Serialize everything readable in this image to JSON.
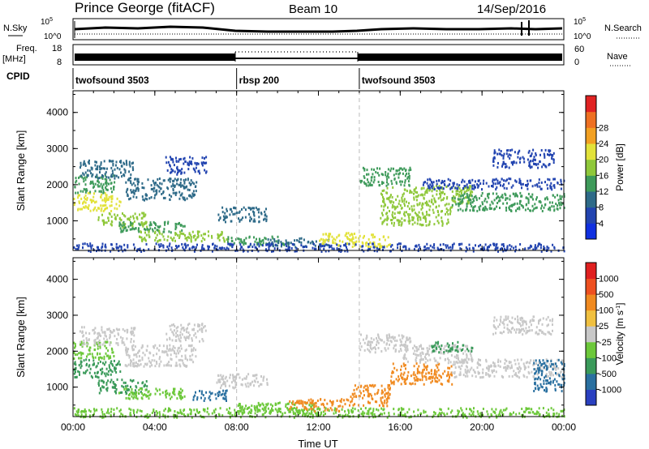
{
  "header": {
    "title": "Prince George (fitACF)",
    "beam": "Beam 10",
    "date": "14/Sep/2016"
  },
  "top_panels": {
    "nsky_label": "N.Sky",
    "nsky_ticks": [
      "10^5",
      "10^0"
    ],
    "nsearch_label": "N.Search",
    "nsearch_ticks": [
      "10^5",
      "10^0"
    ],
    "freq_label_line1": "Freq.",
    "freq_label_line2": "[MHz]",
    "freq_ticks": [
      "18",
      "8"
    ],
    "nave_label": "Nave",
    "nave_ticks": [
      "60",
      "0"
    ],
    "cpid_label": "CPID",
    "cpid_segments": [
      {
        "name": "twofsound 3503",
        "start": 0,
        "end": 8
      },
      {
        "name": "rbsp 200",
        "start": 8,
        "end": 14
      },
      {
        "name": "twofsound 3503",
        "start": 14,
        "end": 24
      }
    ]
  },
  "chart_data": [
    {
      "type": "heatmap",
      "title": "",
      "xlabel": "Time UT",
      "ylabel": "Slant Range [km]",
      "xlim": [
        0,
        24
      ],
      "ylim": [
        180,
        4600
      ],
      "x_ticks": [
        "00:00",
        "04:00",
        "08:00",
        "12:00",
        "16:00",
        "20:00",
        "00:00"
      ],
      "y_ticks": [
        "1000",
        "2000",
        "3000",
        "4000"
      ],
      "y_tick_values": [
        1000,
        2000,
        3000,
        4000
      ],
      "colorbar": {
        "label": "Power [dB]",
        "ticks": [
          "4",
          "8",
          "12",
          "16",
          "20",
          "24",
          "28"
        ],
        "colors": [
          "#1030e0",
          "#2244b0",
          "#2e6a88",
          "#3e9a5a",
          "#8fc83a",
          "#e2e23a",
          "#f2a022",
          "#ee7022",
          "#e02222"
        ]
      },
      "regions": [
        {
          "x": [
            0.0,
            2.3
          ],
          "y": [
            1300,
            1800
          ],
          "v": 24
        },
        {
          "x": [
            0.0,
            2.0
          ],
          "y": [
            1800,
            2300
          ],
          "v": 14
        },
        {
          "x": [
            0.3,
            3.0
          ],
          "y": [
            2200,
            2700
          ],
          "v": 9
        },
        {
          "x": [
            1.2,
            3.6
          ],
          "y": [
            850,
            1250
          ],
          "v": 18
        },
        {
          "x": [
            2.2,
            5.5
          ],
          "y": [
            700,
            1000
          ],
          "v": 16
        },
        {
          "x": [
            3.2,
            7.5
          ],
          "y": [
            450,
            750
          ],
          "v": 20
        },
        {
          "x": [
            2.5,
            6.0
          ],
          "y": [
            1600,
            2200
          ],
          "v": 10
        },
        {
          "x": [
            4.5,
            6.5
          ],
          "y": [
            2300,
            2800
          ],
          "v": 8
        },
        {
          "x": [
            7.0,
            9.5
          ],
          "y": [
            1000,
            1400
          ],
          "v": 11
        },
        {
          "x": [
            7.5,
            10.5
          ],
          "y": [
            350,
            600
          ],
          "v": 13
        },
        {
          "x": [
            9.5,
            12.5
          ],
          "y": [
            300,
            550
          ],
          "v": 9
        },
        {
          "x": [
            12.0,
            13.8
          ],
          "y": [
            350,
            700
          ],
          "v": 22
        },
        {
          "x": [
            13.5,
            15.5
          ],
          "y": [
            300,
            650
          ],
          "v": 24
        },
        {
          "x": [
            14.0,
            16.5
          ],
          "y": [
            2000,
            2500
          ],
          "v": 14
        },
        {
          "x": [
            15.0,
            19.5
          ],
          "y": [
            1500,
            2000
          ],
          "v": 18
        },
        {
          "x": [
            15.0,
            18.5
          ],
          "y": [
            900,
            1500
          ],
          "v": 17
        },
        {
          "x": [
            18.5,
            24.0
          ],
          "y": [
            1300,
            1800
          ],
          "v": 14
        },
        {
          "x": [
            17.0,
            24.0
          ],
          "y": [
            1900,
            2200
          ],
          "v": 7
        },
        {
          "x": [
            20.5,
            23.5
          ],
          "y": [
            2500,
            3000
          ],
          "v": 6
        },
        {
          "x": [
            0.0,
            24.0
          ],
          "y": [
            180,
            400
          ],
          "v": 5
        }
      ]
    },
    {
      "type": "heatmap",
      "title": "",
      "xlabel": "Time UT",
      "ylabel": "Slant Range [km]",
      "xlim": [
        0,
        24
      ],
      "ylim": [
        180,
        4600
      ],
      "x_ticks": [
        "00:00",
        "04:00",
        "08:00",
        "12:00",
        "16:00",
        "20:00",
        "00:00"
      ],
      "y_ticks": [
        "1000",
        "2000",
        "3000",
        "4000"
      ],
      "y_tick_values": [
        1000,
        2000,
        3000,
        4000
      ],
      "colorbar": {
        "label": "Velocity [m s^-1]",
        "ticks": [
          "1000",
          "500",
          "100",
          "25",
          "-25",
          "-100",
          "-500",
          "-1000"
        ],
        "colors": [
          "#2a40c0",
          "#2a70a0",
          "#3a9a5a",
          "#6cc83a",
          "#c8c8c8",
          "#f0c040",
          "#f08a20",
          "#ee5020",
          "#e02020"
        ]
      },
      "regions": [
        {
          "x": [
            0.0,
            2.3
          ],
          "y": [
            1300,
            1800
          ],
          "v": -500
        },
        {
          "x": [
            0.0,
            2.0
          ],
          "y": [
            1800,
            2300
          ],
          "v": -100
        },
        {
          "x": [
            0.3,
            3.0
          ],
          "y": [
            2200,
            2700
          ],
          "v": 0
        },
        {
          "x": [
            1.2,
            3.6
          ],
          "y": [
            850,
            1250
          ],
          "v": -500
        },
        {
          "x": [
            2.2,
            5.5
          ],
          "y": [
            700,
            1000
          ],
          "v": -100
        },
        {
          "x": [
            5.8,
            7.5
          ],
          "y": [
            650,
            950
          ],
          "v": -600
        },
        {
          "x": [
            2.5,
            6.0
          ],
          "y": [
            1600,
            2200
          ],
          "v": 0
        },
        {
          "x": [
            4.5,
            6.5
          ],
          "y": [
            2300,
            2800
          ],
          "v": 0
        },
        {
          "x": [
            7.0,
            9.5
          ],
          "y": [
            1000,
            1400
          ],
          "v": 0
        },
        {
          "x": [
            8.0,
            12.0
          ],
          "y": [
            300,
            600
          ],
          "v": -100
        },
        {
          "x": [
            10.5,
            13.5
          ],
          "y": [
            350,
            700
          ],
          "v": 100
        },
        {
          "x": [
            13.5,
            15.5
          ],
          "y": [
            500,
            1100
          ],
          "v": 100
        },
        {
          "x": [
            14.0,
            16.5
          ],
          "y": [
            2000,
            2500
          ],
          "v": 0
        },
        {
          "x": [
            15.5,
            18.5
          ],
          "y": [
            1100,
            1700
          ],
          "v": 100
        },
        {
          "x": [
            16.0,
            19.5
          ],
          "y": [
            1700,
            2200
          ],
          "v": 0
        },
        {
          "x": [
            17.5,
            19.5
          ],
          "y": [
            2000,
            2300
          ],
          "v": -500
        },
        {
          "x": [
            18.5,
            24.0
          ],
          "y": [
            1300,
            1800
          ],
          "v": 0
        },
        {
          "x": [
            22.5,
            24.0
          ],
          "y": [
            900,
            1800
          ],
          "v": -700
        },
        {
          "x": [
            20.5,
            23.5
          ],
          "y": [
            2500,
            3000
          ],
          "v": 0
        },
        {
          "x": [
            0.0,
            24.0
          ],
          "y": [
            180,
            450
          ],
          "v": -60
        }
      ]
    }
  ]
}
